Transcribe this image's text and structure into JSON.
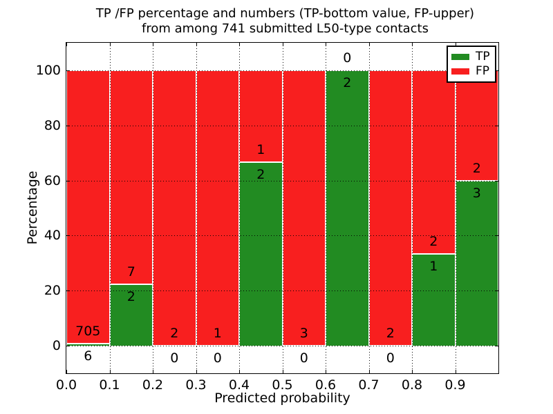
{
  "figure": {
    "title_line1": "TP /FP percentage and numbers (TP-bottom value, FP-upper)",
    "title_line2": "from among 741 submitted L50-type contacts",
    "xlabel": "Predicted probability",
    "ylabel": "Percentage"
  },
  "chart_data": {
    "type": "bar",
    "stacked": true,
    "title": "TP /FP percentage and numbers (TP-bottom value, FP-upper) from among 741 submitted L50-type contacts",
    "xlabel": "Predicted probability",
    "ylabel": "Percentage",
    "total_submitted": 741,
    "x_bin_edges": [
      0.0,
      0.1,
      0.2,
      0.3,
      0.4,
      0.5,
      0.6,
      0.7,
      0.8,
      0.9,
      1.0
    ],
    "series": [
      {
        "name": "TP",
        "color": "#228b22",
        "counts": [
          6,
          2,
          0,
          0,
          2,
          0,
          2,
          0,
          1,
          3
        ],
        "percent": [
          0.84,
          22.22,
          0,
          0,
          66.67,
          0,
          100,
          0,
          33.33,
          60
        ]
      },
      {
        "name": "FP",
        "color": "#f81f1f",
        "counts": [
          705,
          7,
          2,
          1,
          1,
          3,
          0,
          2,
          2,
          2
        ],
        "percent": [
          99.16,
          77.78,
          100,
          100,
          33.33,
          100,
          0,
          100,
          66.67,
          40
        ]
      }
    ],
    "bar_label_rule": "FP count printed just above the TP/FP boundary, TP count just below it",
    "yticks": [
      0,
      20,
      40,
      60,
      80,
      100
    ],
    "ytick_labels": [
      "0",
      "20",
      "40",
      "60",
      "80",
      "100"
    ],
    "xtick_labels": [
      "0.0",
      "0.1",
      "0.2",
      "0.3",
      "0.4",
      "0.5",
      "0.6",
      "0.7",
      "0.8",
      "0.9"
    ],
    "xlim": [
      0,
      1
    ],
    "ylim": [
      -10,
      110
    ],
    "grid": {
      "on": true,
      "style": "dotted",
      "color": "#000000"
    },
    "legend": {
      "position": "upper right",
      "entries": [
        {
          "label": "TP",
          "color": "#228b22"
        },
        {
          "label": "FP",
          "color": "#f81f1f"
        }
      ]
    },
    "colors": {
      "bar_edge": "#ffffff",
      "axes": "#000000",
      "background": "#ffffff"
    }
  }
}
